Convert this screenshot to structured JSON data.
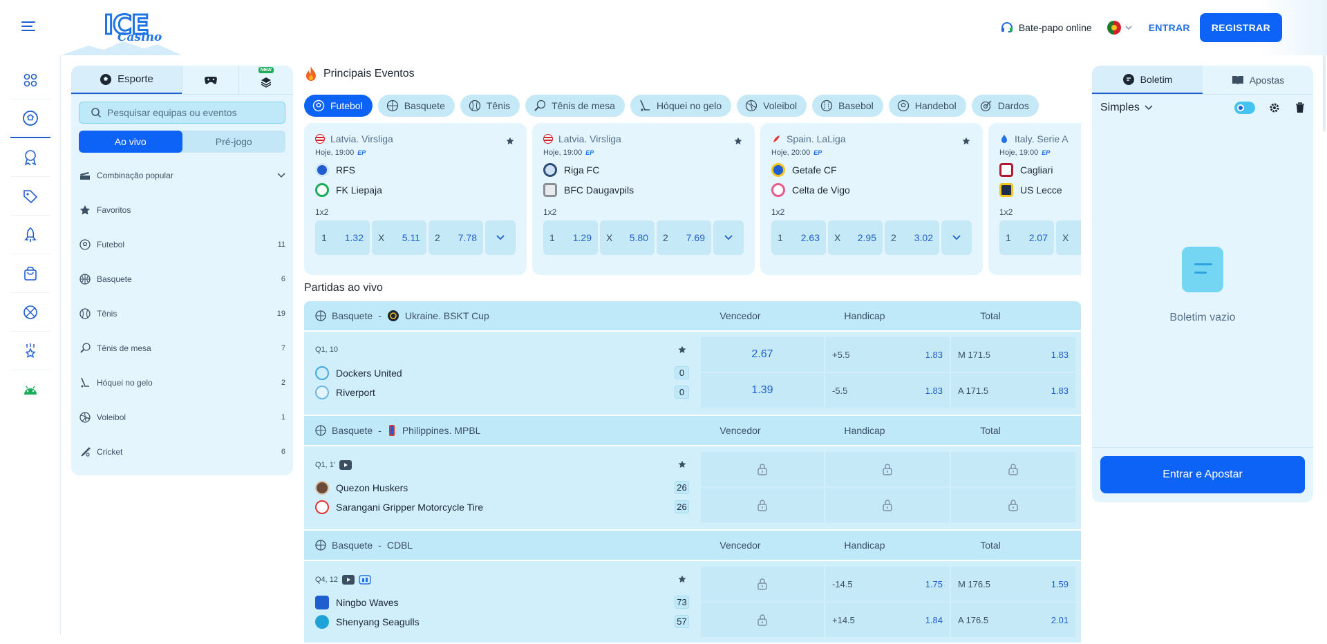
{
  "header": {
    "logo_ice": "ICE",
    "logo_casino": "Casino",
    "chat_label": "Bate-papo online",
    "login_label": "ENTRAR",
    "register_label": "REGISTRAR"
  },
  "rail": {
    "items": [
      "grid-icon",
      "soccer-icon",
      "award-icon",
      "tag-icon",
      "rocket-icon",
      "shop-bag-icon",
      "basketball-icon",
      "trophy-star-icon",
      "android-icon"
    ]
  },
  "sport_panel": {
    "tabs": {
      "sport": "Esporte",
      "new_badge": "NEW"
    },
    "search_placeholder": "Pesquisar equipas ou eventos",
    "toggle": {
      "live": "Ao vivo",
      "prematch": "Pré-jogo"
    },
    "list": [
      {
        "icon": "cards-icon",
        "label": "Combinação popular",
        "count": ""
      },
      {
        "icon": "star-icon",
        "label": "Favoritos",
        "count": ""
      },
      {
        "icon": "soccer-icon",
        "label": "Futebol",
        "count": "11"
      },
      {
        "icon": "basketball-icon",
        "label": "Basquete",
        "count": "6"
      },
      {
        "icon": "tennis-icon",
        "label": "Tênis",
        "count": "19"
      },
      {
        "icon": "table-tennis-icon",
        "label": "Tênis de mesa",
        "count": "7"
      },
      {
        "icon": "hockey-icon",
        "label": "Hóquei no gelo",
        "count": "2"
      },
      {
        "icon": "volleyball-icon",
        "label": "Voleibol",
        "count": "1"
      },
      {
        "icon": "cricket-icon",
        "label": "Cricket",
        "count": "6"
      }
    ]
  },
  "main": {
    "title": "Principais Eventos",
    "chips": [
      "Futebol",
      "Basquete",
      "Tênis",
      "Tênis de mesa",
      "Hóquei no gelo",
      "Voleibol",
      "Basebol",
      "Handebol",
      "Dardos"
    ],
    "cards": [
      {
        "league": "Latvia. Virsliga",
        "time": "Hoje, 19:00",
        "ep": "EP",
        "team1": "RFS",
        "team2": "FK Liepaja",
        "market": "1x2",
        "o1": "1.32",
        "ox": "5.11",
        "o2": "7.78",
        "t1c": "#1f5ecf",
        "t2c": "#1aae5b",
        "lc": "#d4202a"
      },
      {
        "league": "Latvia. Virsliga",
        "time": "Hoje, 19:00",
        "ep": "EP",
        "team1": "Riga FC",
        "team2": "BFC Daugavpils",
        "market": "1x2",
        "o1": "1.29",
        "ox": "5.80",
        "o2": "7.69",
        "t1c": "#2d4e7a",
        "t2c": "#8a8f96",
        "lc": "#d4202a"
      },
      {
        "league": "Spain. LaLiga",
        "time": "Hoje, 20:00",
        "ep": "EP",
        "team1": "Getafe CF",
        "team2": "Celta de Vigo",
        "market": "1x2",
        "o1": "2.63",
        "ox": "2.95",
        "o2": "3.02",
        "t1c": "#1f5ecf",
        "t2c": "#e85a8a",
        "lc": "#e2322f"
      },
      {
        "league": "Italy. Serie A",
        "time": "Hoje, 19:00",
        "ep": "EP",
        "team1": "Cagliari",
        "team2": "US Lecce",
        "market": "1x2",
        "o1": "2.07",
        "ox": "",
        "o2": "",
        "t1c": "#b3182f",
        "t2c": "#1c2e4a",
        "lc": "#1f74e6"
      }
    ],
    "odd_labels": {
      "one": "1",
      "x": "X",
      "two": "2"
    },
    "live_title": "Partidas ao vivo",
    "live_cols": {
      "winner": "Vencedor",
      "handicap": "Handicap",
      "total": "Total"
    },
    "live": [
      {
        "sport": "Basquete",
        "league": "Ukraine. BSKT Cup",
        "period": "Q1, 10",
        "video": false,
        "stats": false,
        "team1": "Dockers United",
        "team2": "Riverport",
        "s1": "0",
        "s2": "0",
        "w1": "2.67",
        "w2": "1.39",
        "h1k": "+5.5",
        "h1v": "1.83",
        "h2k": "-5.5",
        "h2v": "1.83",
        "t1k": "M 171.5",
        "t1v": "1.83",
        "t2k": "A 171.5",
        "t2v": "1.83",
        "locked": false
      },
      {
        "sport": "Basquete",
        "league": "Philippines. MPBL",
        "period": "Q1, 1'",
        "video": true,
        "stats": false,
        "team1": "Quezon Huskers",
        "team2": "Sarangani Gripper Motorcycle Tire",
        "s1": "26",
        "s2": "26",
        "locked": true
      },
      {
        "sport": "Basquete",
        "league": "CDBL",
        "period": "Q4, 12",
        "video": true,
        "stats": true,
        "team1": "Ningbo Waves",
        "team2": "Shenyang Seagulls",
        "s1": "73",
        "s2": "57",
        "h1k": "-14.5",
        "h1v": "1.75",
        "h2k": "+14.5",
        "h2v": "1.84",
        "t1k": "M 176.5",
        "t1v": "1.59",
        "t2k": "A 176.5",
        "t2v": "2.01",
        "locked": false,
        "winner_locked": true
      }
    ]
  },
  "slip": {
    "tab_slip": "Boletim",
    "tab_bets": "Apostas",
    "mode": "Simples",
    "empty": "Boletim vazio",
    "cta": "Entrar e Apostar"
  },
  "colors": {
    "accent": "#0d63f5",
    "panel": "#e4f5fd",
    "odd_bg": "#c6e9f8",
    "link": "#1f5ecf"
  }
}
